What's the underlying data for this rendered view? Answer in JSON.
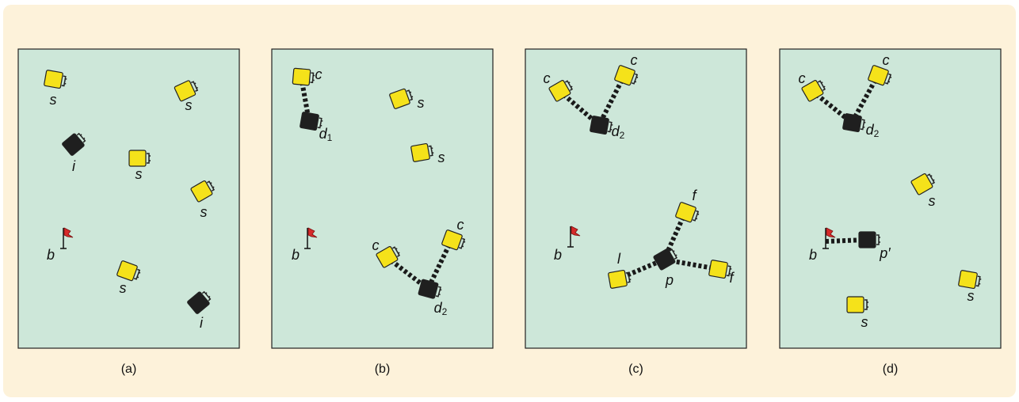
{
  "panels": [
    {
      "caption": "(a)",
      "labels": [
        "s",
        "s",
        "i",
        "s",
        "s",
        "b",
        "s",
        "i"
      ]
    },
    {
      "caption": "(b)",
      "labels": [
        "c",
        {
          "text": "d",
          "sub": "1"
        },
        "s",
        "s",
        "b",
        "c",
        "c",
        {
          "text": "d",
          "sub": "2"
        }
      ]
    },
    {
      "caption": "(c)",
      "labels": [
        "c",
        "c",
        {
          "text": "d",
          "sub": "2"
        },
        "f",
        "b",
        "p",
        "l",
        "f"
      ]
    },
    {
      "caption": "(d)",
      "labels": [
        "c",
        "c",
        {
          "text": "d",
          "sub": "2"
        },
        "s",
        "b",
        "p′",
        "s",
        "s"
      ]
    }
  ]
}
